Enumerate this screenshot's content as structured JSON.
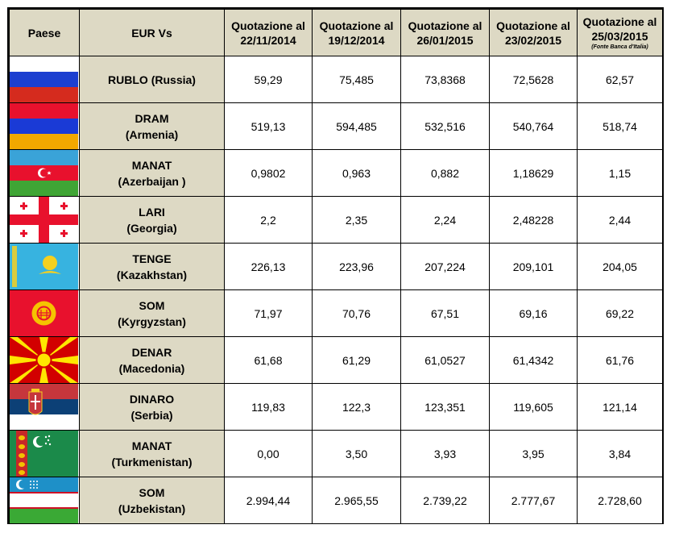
{
  "header": {
    "paese": "Paese",
    "eur_vs": "EUR Vs",
    "dates": [
      {
        "label": "Quotazione al",
        "date": "22/11/2014"
      },
      {
        "label": "Quotazione al",
        "date": "19/12/2014"
      },
      {
        "label": "Quotazione al",
        "date": "26/01/2015"
      },
      {
        "label": "Quotazione al",
        "date": "23/02/2015"
      },
      {
        "label": "Quotazione al",
        "date": "25/03/2015"
      }
    ],
    "source_note": "(Fonte Banca d'Italia)"
  },
  "rows": [
    {
      "currency": "RUBLO  (Russia)",
      "country": "",
      "flag": "russia-flag",
      "values": [
        "59,29",
        "75,485",
        "73,8368",
        "72,5628",
        "62,57"
      ]
    },
    {
      "currency": "DRAM",
      "country": "(Armenia)",
      "flag": "armenia-flag",
      "values": [
        "519,13",
        "594,485",
        "532,516",
        "540,764",
        "518,74"
      ]
    },
    {
      "currency": "MANAT",
      "country": "(Azerbaijan )",
      "flag": "azerbaijan-flag",
      "values": [
        "0,9802",
        "0,963",
        "0,882",
        "1,18629",
        "1,15"
      ]
    },
    {
      "currency": "LARI",
      "country": "(Georgia)",
      "flag": "georgia-flag",
      "values": [
        "2,2",
        "2,35",
        "2,24",
        "2,48228",
        "2,44"
      ]
    },
    {
      "currency": "TENGE",
      "country": "(Kazakhstan)",
      "flag": "kazakhstan-flag",
      "values": [
        "226,13",
        "223,96",
        "207,224",
        "209,101",
        "204,05"
      ]
    },
    {
      "currency": "SOM",
      "country": "(Kyrgyzstan)",
      "flag": "kyrgyzstan-flag",
      "values": [
        "71,97",
        "70,76",
        "67,51",
        "69,16",
        "69,22"
      ]
    },
    {
      "currency": "DENAR",
      "country": "(Macedonia)",
      "flag": "macedonia-flag",
      "values": [
        "61,68",
        "61,29",
        "61,0527",
        "61,4342",
        "61,76"
      ]
    },
    {
      "currency": "DINARO",
      "country": "(Serbia)",
      "flag": "serbia-flag",
      "values": [
        "119,83",
        "122,3",
        "123,351",
        "119,605",
        "121,14"
      ]
    },
    {
      "currency": "MANAT",
      "country": "(Turkmenistan)",
      "flag": "turkmenistan-flag",
      "values": [
        "0,00",
        "3,50",
        "3,93",
        "3,95",
        "3,84"
      ]
    },
    {
      "currency": "SOM",
      "country": "(Uzbekistan)",
      "flag": "uzbekistan-flag",
      "values": [
        "2.994,44",
        "2.965,55",
        "2.739,22",
        "2.777,67",
        "2.728,60"
      ]
    }
  ],
  "colors": {
    "header_bg": "#ddd9c4",
    "border": "#000000"
  }
}
